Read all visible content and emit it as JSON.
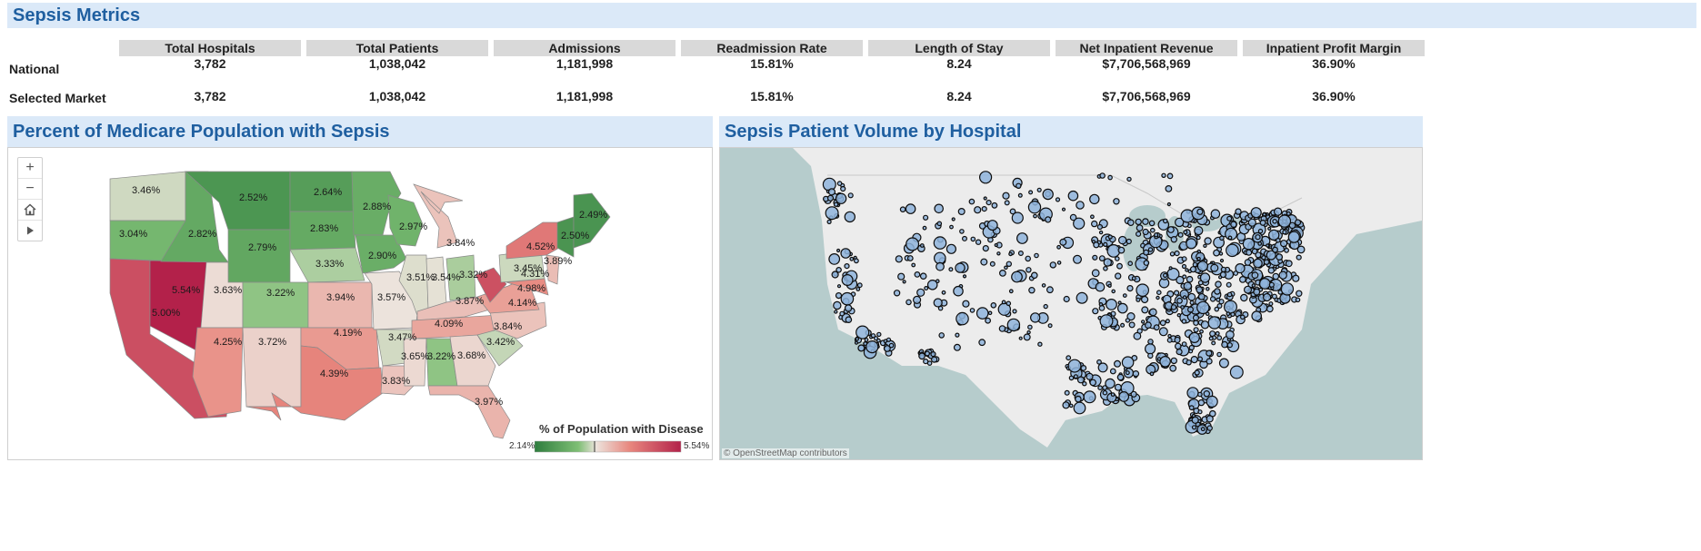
{
  "metrics": {
    "title": "Sepsis Metrics",
    "columns": [
      "Total Hospitals",
      "Total Patients",
      "Admissions",
      "Readmission Rate",
      "Length of Stay",
      "Net Inpatient Revenue",
      "Inpatient Profit Margin"
    ],
    "rows": [
      {
        "label": "National",
        "values": [
          "3,782",
          "1,038,042",
          "1,181,998",
          "15.81%",
          "8.24",
          "$7,706,568,969",
          "36.90%"
        ]
      },
      {
        "label": "Selected Market",
        "values": [
          "3,782",
          "1,038,042",
          "1,181,998",
          "15.81%",
          "8.24",
          "$7,706,568,969",
          "36.90%"
        ]
      }
    ]
  },
  "choropleth": {
    "title": "Percent of Medicare Population with Sepsis",
    "legend_title": "% of Population with Disease",
    "legend_min": "2.14%",
    "legend_max": "5.54%",
    "colors": {
      "low": "#2e7d3e",
      "mid": "#ece3dc",
      "high": "#b3214a"
    },
    "controls": {
      "zoom_in": "+",
      "zoom_out": "−",
      "home": "home-icon",
      "play": "play-icon"
    },
    "states": [
      {
        "id": "WA",
        "value": "3.46%",
        "pct": 3.46
      },
      {
        "id": "OR",
        "value": "3.04%",
        "pct": 3.04
      },
      {
        "id": "CA",
        "value": "5.00%",
        "pct": 5.0
      },
      {
        "id": "NV",
        "value": "5.54%",
        "pct": 5.54
      },
      {
        "id": "ID",
        "value": "2.82%",
        "pct": 2.82
      },
      {
        "id": "MT",
        "value": "2.52%",
        "pct": 2.52
      },
      {
        "id": "WY",
        "value": "2.79%",
        "pct": 2.79
      },
      {
        "id": "UT",
        "value": "3.63%",
        "pct": 3.63
      },
      {
        "id": "AZ",
        "value": "4.25%",
        "pct": 4.25
      },
      {
        "id": "CO",
        "value": "3.22%",
        "pct": 3.22
      },
      {
        "id": "NM",
        "value": "3.72%",
        "pct": 3.72
      },
      {
        "id": "ND",
        "value": "2.64%",
        "pct": 2.64
      },
      {
        "id": "SD",
        "value": "2.83%",
        "pct": 2.83
      },
      {
        "id": "NE",
        "value": "3.33%",
        "pct": 3.33
      },
      {
        "id": "KS",
        "value": "3.94%",
        "pct": 3.94
      },
      {
        "id": "OK",
        "value": "4.19%",
        "pct": 4.19
      },
      {
        "id": "TX",
        "value": "4.39%",
        "pct": 4.39
      },
      {
        "id": "MN",
        "value": "2.88%",
        "pct": 2.88
      },
      {
        "id": "IA",
        "value": "2.90%",
        "pct": 2.9
      },
      {
        "id": "MO",
        "value": "3.57%",
        "pct": 3.57
      },
      {
        "id": "AR",
        "value": "3.47%",
        "pct": 3.47
      },
      {
        "id": "LA",
        "value": "3.83%",
        "pct": 3.83
      },
      {
        "id": "WI",
        "value": "2.97%",
        "pct": 2.97
      },
      {
        "id": "IL",
        "value": "3.51%",
        "pct": 3.51
      },
      {
        "id": "IN",
        "value": "3.54%",
        "pct": 3.54
      },
      {
        "id": "MI",
        "value": "3.84%",
        "pct": 3.84
      },
      {
        "id": "OH",
        "value": "3.32%",
        "pct": 3.32
      },
      {
        "id": "KY",
        "value": "3.87%",
        "pct": 3.87
      },
      {
        "id": "TN",
        "value": "4.09%",
        "pct": 4.09
      },
      {
        "id": "MS",
        "value": "3.65%",
        "pct": 3.65
      },
      {
        "id": "AL",
        "value": "3.22%",
        "pct": 3.22
      },
      {
        "id": "GA",
        "value": "3.68%",
        "pct": 3.68
      },
      {
        "id": "FL",
        "value": "3.97%",
        "pct": 3.97
      },
      {
        "id": "SC",
        "value": "3.42%",
        "pct": 3.42
      },
      {
        "id": "NC",
        "value": "3.84%",
        "pct": 3.84
      },
      {
        "id": "VA",
        "value": "4.14%",
        "pct": 4.14
      },
      {
        "id": "WV",
        "value": "4.98%",
        "pct": 4.98
      },
      {
        "id": "PA",
        "value": "3.45%",
        "pct": 3.45
      },
      {
        "id": "NY",
        "value": "4.52%",
        "pct": 4.52
      },
      {
        "id": "NJ",
        "value": "3.89%",
        "pct": 3.89
      },
      {
        "id": "MD",
        "value": "4.31%",
        "pct": 4.31
      },
      {
        "id": "VT",
        "value": "2.50%",
        "pct": 2.5
      },
      {
        "id": "ME",
        "value": "2.49%",
        "pct": 2.49
      }
    ]
  },
  "bubble_map": {
    "title": "Sepsis Patient Volume by Hospital",
    "attribution": "© OpenStreetMap contributors",
    "colors": {
      "water": "#b6cccc",
      "land": "#ececec",
      "bubble": "#8fb4dc",
      "stroke": "#0d0d0d"
    }
  }
}
